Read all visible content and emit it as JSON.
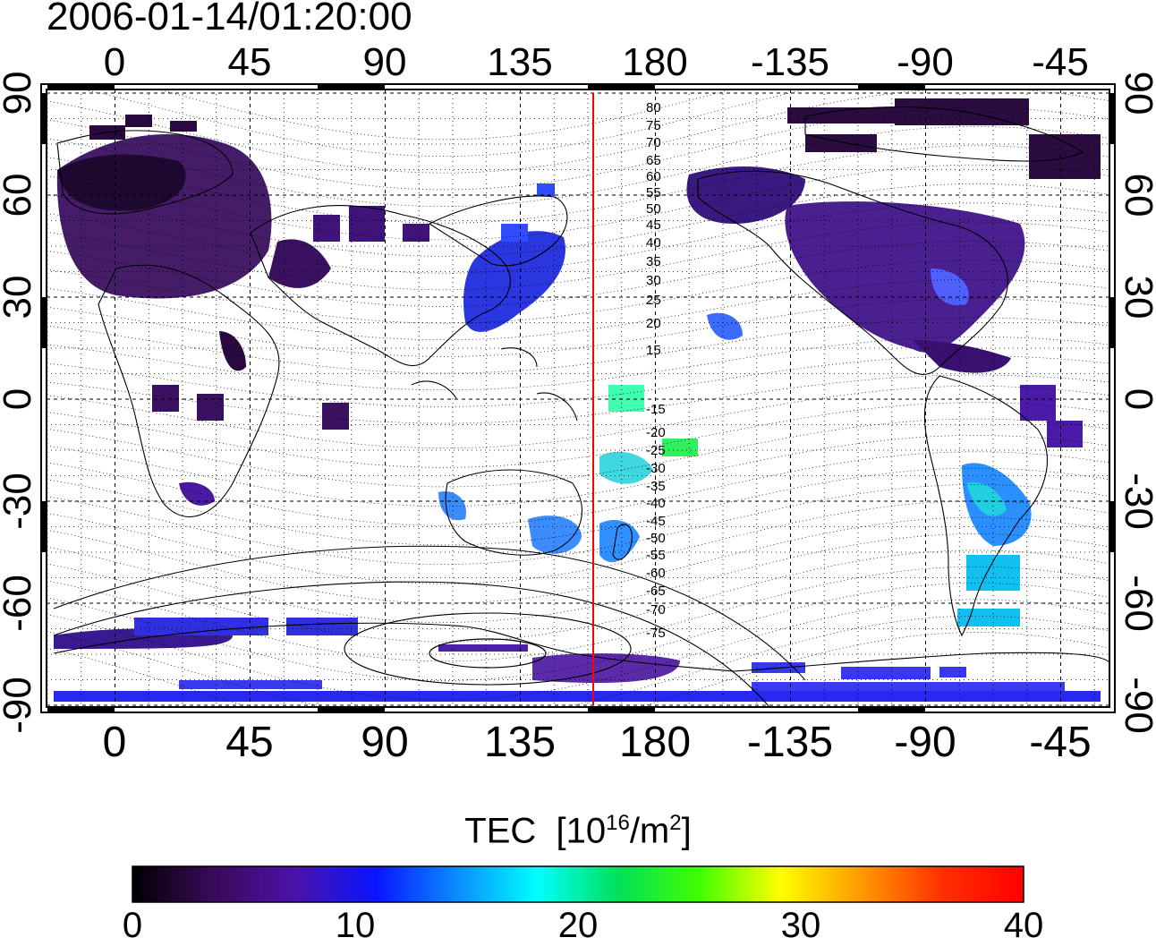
{
  "header": {
    "timestamp": "2006-01-14/01:20:00"
  },
  "map": {
    "projection": "cylindrical",
    "lon_top_labels": [
      "0",
      "45",
      "90",
      "135",
      "180",
      "-135",
      "-90",
      "-45"
    ],
    "lon_bottom_labels": [
      "0",
      "45",
      "90",
      "135",
      "180",
      "-135",
      "-90",
      "-45"
    ],
    "lat_left_labels": [
      "90",
      "60",
      "30",
      "0",
      "-30",
      "-60",
      "-90"
    ],
    "lat_right_labels": [
      "90",
      "60",
      "30",
      "0",
      "-30",
      "-60",
      "-90"
    ],
    "contour_labels": [
      "80",
      "75",
      "70",
      "65",
      "60",
      "55",
      "50",
      "45",
      "40",
      "35",
      "30",
      "25",
      "20",
      "15",
      "-15",
      "-20",
      "-25",
      "-30",
      "-35",
      "-40",
      "-45",
      "-50",
      "-55",
      "-60",
      "-65",
      "-70",
      "-75"
    ],
    "red_meridian_color": "#ff0000"
  },
  "colorbar": {
    "title": "TEC",
    "unit_prefix": "[10",
    "unit_exp": "16",
    "unit_mid": "/m",
    "unit_exp2": "2",
    "unit_suffix": "]",
    "ticks": [
      "0",
      "10",
      "20",
      "30",
      "40"
    ],
    "colors": [
      "#000000",
      "#3a0a5a",
      "#4b12a8",
      "#0a14ff",
      "#0a8cff",
      "#00ffff",
      "#00e05a",
      "#40ff00",
      "#ffff00",
      "#ff9800",
      "#ff3000",
      "#ff0000"
    ]
  }
}
